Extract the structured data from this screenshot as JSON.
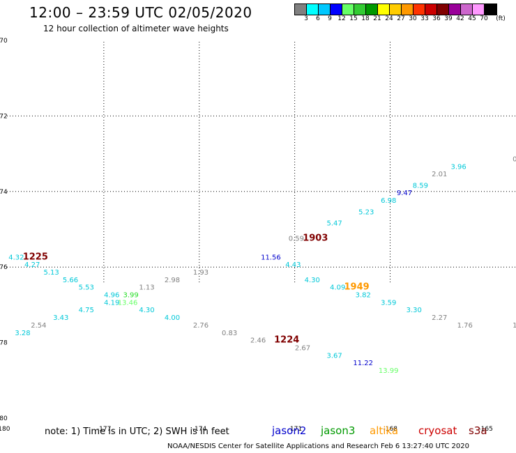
{
  "title": "12:00 – 23:59 UTC 02/05/2020",
  "subtitle": "12 hour collection of altimeter wave heights",
  "colorbar": {
    "colors": [
      "#808080",
      "#00ffff",
      "#00c8ff",
      "#0000ff",
      "#66ff66",
      "#33cc33",
      "#009900",
      "#ffff00",
      "#ffcc00",
      "#ff9900",
      "#ff3300",
      "#cc0000",
      "#800000",
      "#990099",
      "#cc66cc",
      "#ff99ff",
      "#000000"
    ],
    "labels": [
      "3",
      "6",
      "9",
      "12",
      "15",
      "18",
      "21",
      "24",
      "27",
      "30",
      "33",
      "36",
      "39",
      "42",
      "45",
      "70"
    ],
    "unit": "(ft)"
  },
  "axes": {
    "lat_labels": [
      "-70",
      "-72",
      "-74",
      "-76",
      "-78",
      "-80"
    ],
    "lon_labels": [
      "-180",
      "-177",
      "-174",
      "-171",
      "-168",
      "-165"
    ]
  },
  "observations": [
    {
      "text": "4.32",
      "color": "#00c8d8",
      "lon": -179.75,
      "lat": -75.8
    },
    {
      "text": "4.27",
      "color": "#00c8d8",
      "lon": -179.25,
      "lat": -76.0
    },
    {
      "text": "5.13",
      "color": "#00c8d8",
      "lon": -178.65,
      "lat": -76.2
    },
    {
      "text": "5.66",
      "color": "#00c8d8",
      "lon": -178.05,
      "lat": -76.4
    },
    {
      "text": "5.53",
      "color": "#00c8d8",
      "lon": -177.55,
      "lat": -76.6
    },
    {
      "text": "4.96",
      "color": "#00c8d8",
      "lon": -176.75,
      "lat": -76.8
    },
    {
      "text": "3.99",
      "color": "#22dd22",
      "lon": -176.15,
      "lat": -76.8
    },
    {
      "text": "4.19",
      "color": "#00c8d8",
      "lon": -176.75,
      "lat": -77.0
    },
    {
      "text": "13.46",
      "color": "#66ff66",
      "lon": -176.25,
      "lat": -77.0
    },
    {
      "text": "1.13",
      "color": "#808080",
      "lon": -175.65,
      "lat": -76.6
    },
    {
      "text": "2.98",
      "color": "#808080",
      "lon": -174.85,
      "lat": -76.4
    },
    {
      "text": "1.93",
      "color": "#808080",
      "lon": -173.95,
      "lat": -76.2
    },
    {
      "text": "4.75",
      "color": "#00c8d8",
      "lon": -177.55,
      "lat": -77.2
    },
    {
      "text": "3.43",
      "color": "#00c8d8",
      "lon": -178.35,
      "lat": -77.4
    },
    {
      "text": "2.54",
      "color": "#808080",
      "lon": -179.05,
      "lat": -77.6
    },
    {
      "text": "3.28",
      "color": "#00c8d8",
      "lon": -179.55,
      "lat": -77.8
    },
    {
      "text": "4.30",
      "color": "#00c8d8",
      "lon": -175.65,
      "lat": -77.2
    },
    {
      "text": "4.00",
      "color": "#00c8d8",
      "lon": -174.85,
      "lat": -77.4
    },
    {
      "text": "2.76",
      "color": "#808080",
      "lon": -173.95,
      "lat": -77.6
    },
    {
      "text": "0.83",
      "color": "#808080",
      "lon": -173.05,
      "lat": -77.8
    },
    {
      "text": "2.46",
      "color": "#808080",
      "lon": -172.15,
      "lat": -78.0
    },
    {
      "text": "2.67",
      "color": "#808080",
      "lon": -170.75,
      "lat": -78.2
    },
    {
      "text": "3.67",
      "color": "#00c8d8",
      "lon": -169.75,
      "lat": -78.4
    },
    {
      "text": "11.22",
      "color": "#0000cc",
      "lon": -168.85,
      "lat": -78.6
    },
    {
      "text": "13.99",
      "color": "#66ff66",
      "lon": -168.05,
      "lat": -78.8
    },
    {
      "text": "11.56",
      "color": "#0000cc",
      "lon": -171.75,
      "lat": -75.8
    },
    {
      "text": "4.43",
      "color": "#00c8d8",
      "lon": -171.05,
      "lat": -76.0
    },
    {
      "text": "4.30",
      "color": "#00c8d8",
      "lon": -170.45,
      "lat": -76.4
    },
    {
      "text": "4.09",
      "color": "#00c8d8",
      "lon": -169.65,
      "lat": -76.6
    },
    {
      "text": "3.82",
      "color": "#00c8d8",
      "lon": -168.85,
      "lat": -76.8
    },
    {
      "text": "3.59",
      "color": "#00c8d8",
      "lon": -168.05,
      "lat": -77.0
    },
    {
      "text": "3.30",
      "color": "#00c8d8",
      "lon": -167.25,
      "lat": -77.2
    },
    {
      "text": "2.27",
      "color": "#808080",
      "lon": -166.45,
      "lat": -77.4
    },
    {
      "text": "1.76",
      "color": "#808080",
      "lon": -165.65,
      "lat": -77.6
    },
    {
      "text": "0.59",
      "color": "#808080",
      "lon": -170.95,
      "lat": -75.3
    },
    {
      "text": "5.47",
      "color": "#00c8d8",
      "lon": -169.75,
      "lat": -74.9
    },
    {
      "text": "5.23",
      "color": "#00c8d8",
      "lon": -168.75,
      "lat": -74.6
    },
    {
      "text": "6.98",
      "color": "#00c8d8",
      "lon": -168.05,
      "lat": -74.3
    },
    {
      "text": "9.47",
      "color": "#0000cc",
      "lon": -167.55,
      "lat": -74.1
    },
    {
      "text": "8.59",
      "color": "#00c8d8",
      "lon": -167.05,
      "lat": -73.9
    },
    {
      "text": "2.01",
      "color": "#808080",
      "lon": -166.45,
      "lat": -73.6
    },
    {
      "text": "3.96",
      "color": "#00c8d8",
      "lon": -165.85,
      "lat": -73.4
    }
  ],
  "times": [
    {
      "text": "1225",
      "color": "#800000",
      "lon": -179.15,
      "lat": -75.8
    },
    {
      "text": "1903",
      "color": "#800000",
      "lon": -170.35,
      "lat": -75.3
    },
    {
      "text": "1949",
      "color": "#ff9900",
      "lon": -169.05,
      "lat": -76.6
    },
    {
      "text": "1224",
      "color": "#800000",
      "lon": -171.25,
      "lat": -78.0
    }
  ],
  "edge_labels": [
    {
      "text": "0",
      "lon": -164.15,
      "lat": -73.2
    },
    {
      "text": "1.",
      "lon": -164.15,
      "lat": -77.6
    }
  ],
  "note": "note:  1) Time is in UTC;  2) SWH is in feet",
  "legend": [
    {
      "text": "jason2",
      "color": "#0000cc"
    },
    {
      "text": "jason3",
      "color": "#009900"
    },
    {
      "text": "altika",
      "color": "#ff9900"
    },
    {
      "text": "cryosat",
      "color": "#cc0000"
    },
    {
      "text": "s3a",
      "color": "#800000"
    }
  ],
  "footer": "NOAA/NESDIS Center for Satellite Applications and Research    Feb  6 13:27:40 UTC 2020"
}
